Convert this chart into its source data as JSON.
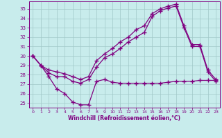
{
  "xlabel": "Windchill (Refroidissement éolien,°C)",
  "bg_color": "#c8ecec",
  "line_color": "#800080",
  "grid_color": "#a0c8c8",
  "xlim": [
    -0.5,
    23.5
  ],
  "ylim": [
    24.5,
    35.8
  ],
  "xticks": [
    0,
    1,
    2,
    3,
    4,
    5,
    6,
    7,
    8,
    9,
    10,
    11,
    12,
    13,
    14,
    15,
    16,
    17,
    18,
    19,
    20,
    21,
    22,
    23
  ],
  "yticks": [
    25,
    26,
    27,
    28,
    29,
    30,
    31,
    32,
    33,
    34,
    35
  ],
  "line1_x": [
    0,
    1,
    2,
    3,
    4,
    5,
    6,
    7,
    8,
    9,
    10,
    11,
    12,
    13,
    14,
    15,
    16,
    17,
    18,
    19,
    20,
    21,
    22,
    23
  ],
  "line1_y": [
    30,
    29,
    27.8,
    26.5,
    26,
    25.1,
    24.8,
    24.8,
    27.3,
    27.5,
    27.2,
    27.1,
    27.1,
    27.1,
    27.1,
    27.1,
    27.1,
    27.2,
    27.3,
    27.3,
    27.3,
    27.4,
    27.4,
    27.4
  ],
  "line2_x": [
    0,
    1,
    2,
    3,
    4,
    5,
    6,
    7,
    8,
    9,
    10,
    11,
    12,
    13,
    14,
    15,
    16,
    17,
    18,
    19,
    20,
    21,
    22,
    23
  ],
  "line2_y": [
    30,
    29,
    28.5,
    28.3,
    28.1,
    27.8,
    27.5,
    27.8,
    29.5,
    30.2,
    30.8,
    31.5,
    32.0,
    32.8,
    33.2,
    34.5,
    35.0,
    35.3,
    35.5,
    33.2,
    31.2,
    31.2,
    28.5,
    27.5
  ],
  "line3_x": [
    0,
    1,
    2,
    3,
    4,
    5,
    6,
    7,
    8,
    9,
    10,
    11,
    12,
    13,
    14,
    15,
    16,
    17,
    18,
    19,
    20,
    21,
    22,
    23
  ],
  "line3_y": [
    30,
    29,
    28.2,
    27.8,
    27.8,
    27.3,
    27.1,
    27.5,
    28.8,
    29.8,
    30.2,
    30.8,
    31.5,
    32.0,
    32.5,
    34.2,
    34.8,
    35.1,
    35.3,
    33.0,
    31.0,
    31.0,
    28.3,
    27.3
  ]
}
